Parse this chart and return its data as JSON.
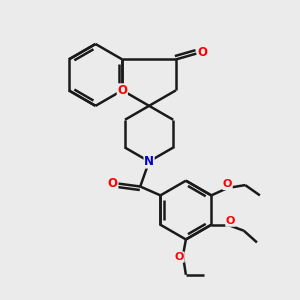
{
  "bg_color": "#ebebeb",
  "bond_color": "#1a1a1a",
  "o_color": "#ff0000",
  "n_color": "#0000cc",
  "lw": 1.8,
  "dbo": 0.12,
  "figsize": [
    3.0,
    3.0
  ],
  "dpi": 100,
  "xlim": [
    0,
    10
  ],
  "ylim": [
    0,
    10
  ]
}
